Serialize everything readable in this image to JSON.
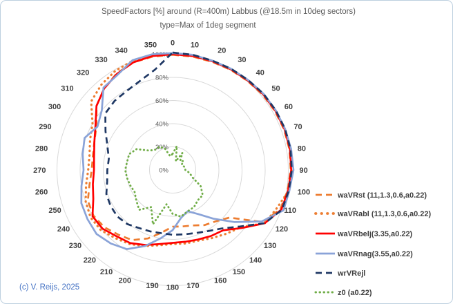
{
  "title": {
    "line1": "SpeedFactors [%] around (R=400m) Labbus (@18.5m in 10deg sectors)",
    "line2": "type=Max of 1deg segment"
  },
  "copyright": "(c) V. Reijs, 2025",
  "colors": {
    "orange": "#ED7D31",
    "red": "#FF0000",
    "light_blue": "#8AA3D8",
    "navy": "#1F3864",
    "green": "#70AD47",
    "gridline": "#D9D9D9",
    "angle_label": "#404040",
    "radial_label": "#595959",
    "title": "#595959",
    "copyright": "#4472C4",
    "border": "#BCCFDF"
  },
  "chart_data": {
    "type": "radar",
    "title": "SpeedFactors [%] around (R=400m) Labbus (@18.5m in 10deg sectors) type=Max of 1deg segment",
    "angle_unit": "deg",
    "angles": [
      0,
      10,
      20,
      30,
      40,
      50,
      60,
      70,
      80,
      90,
      100,
      110,
      120,
      130,
      140,
      150,
      160,
      170,
      180,
      190,
      200,
      210,
      220,
      230,
      240,
      250,
      260,
      270,
      280,
      290,
      300,
      310,
      320,
      330,
      340,
      350
    ],
    "angle_labels": [
      "0",
      "10",
      "20",
      "30",
      "40",
      "50",
      "60",
      "70",
      "80",
      "90",
      "100",
      "110",
      "120",
      "130",
      "140",
      "150",
      "160",
      "170",
      "180",
      "190",
      "200",
      "210",
      "220",
      "230",
      "240",
      "250",
      "260",
      "270",
      "280",
      "290",
      "300",
      "310",
      "320",
      "330",
      "340",
      "350"
    ],
    "radial_axis": {
      "labels": [
        "0%",
        "20%",
        "40%",
        "60%",
        "80%",
        "100%"
      ],
      "label_values": [
        0,
        20,
        40,
        60,
        80,
        100
      ],
      "ring_values": [
        20,
        40,
        60,
        80,
        100
      ],
      "max": 100,
      "grid": true
    },
    "legend_position": "right",
    "series": [
      {
        "name": "waVRst (11,1.3,0.6,a0.22)",
        "color": "#ED7D31",
        "style": "dash",
        "values": [
          99.5,
          99.5,
          99.5,
          100,
          100.5,
          101.5,
          102,
          102.5,
          102.5,
          102,
          101,
          99,
          90,
          64,
          58,
          55,
          51,
          49.5,
          49,
          55,
          63,
          70,
          73,
          77,
          79,
          78,
          73,
          70,
          70,
          72,
          76,
          86,
          92,
          96.5,
          99,
          99.5
        ]
      },
      {
        "name": "waVRabl (11,1.3,0.6,a0.22)",
        "color": "#ED7D31",
        "style": "dot",
        "values": [
          100,
          100,
          100,
          100.5,
          101,
          102,
          102.5,
          103,
          103.5,
          103,
          102,
          96,
          92,
          77,
          72,
          68,
          65,
          64.5,
          64,
          66,
          70,
          74,
          77,
          81,
          82,
          80,
          76,
          73,
          73,
          76,
          80,
          92,
          96,
          99,
          100.5,
          100.5
        ]
      },
      {
        "name": "waVRbelj(3.35,a0.22)",
        "color": "#FF0000",
        "style": "solid",
        "values": [
          100,
          100,
          100,
          100.5,
          101,
          102,
          102.5,
          103,
          103,
          102.5,
          101.5,
          100,
          92,
          78,
          68,
          66,
          64,
          63,
          63,
          65,
          69,
          73,
          75,
          79,
          80,
          73,
          70,
          68,
          69,
          72,
          77,
          86,
          92,
          96,
          99,
          100
        ]
      },
      {
        "name": "waVRnag(3.55,a0.22)",
        "color": "#8AA3D8",
        "style": "solid",
        "values": [
          101,
          101,
          100.5,
          101,
          101.5,
          102.5,
          103,
          103.5,
          104,
          104.5,
          102.5,
          102,
          89,
          70,
          55,
          44,
          38,
          42,
          52,
          60,
          70,
          79,
          83,
          86,
          85,
          84,
          80,
          77,
          79,
          81,
          75,
          80,
          93,
          95,
          101,
          101.5
        ]
      },
      {
        "name": "wrVRejl",
        "color": "#1F3864",
        "style": "dash",
        "values": [
          101.5,
          101,
          100.5,
          101,
          101.5,
          102.5,
          103,
          103.5,
          103.5,
          103,
          102,
          100.5,
          92,
          76,
          66,
          61,
          58,
          56.5,
          56,
          55.5,
          56.5,
          58,
          61,
          62.5,
          62,
          61,
          57.5,
          56.5,
          56,
          60,
          67,
          76,
          78,
          79,
          82,
          88
        ]
      },
      {
        "name": "z0 (a0.22)",
        "color": "#70AD47",
        "style": "dot",
        "values": [
          14,
          21,
          8,
          17,
          10,
          12,
          9,
          10,
          11,
          11,
          15,
          18,
          28,
          34,
          34,
          37,
          38,
          41,
          38,
          30,
          50,
          37,
          45,
          41,
          38,
          39,
          40,
          41,
          40,
          40,
          36,
          26,
          23,
          23,
          20,
          12
        ]
      }
    ]
  }
}
